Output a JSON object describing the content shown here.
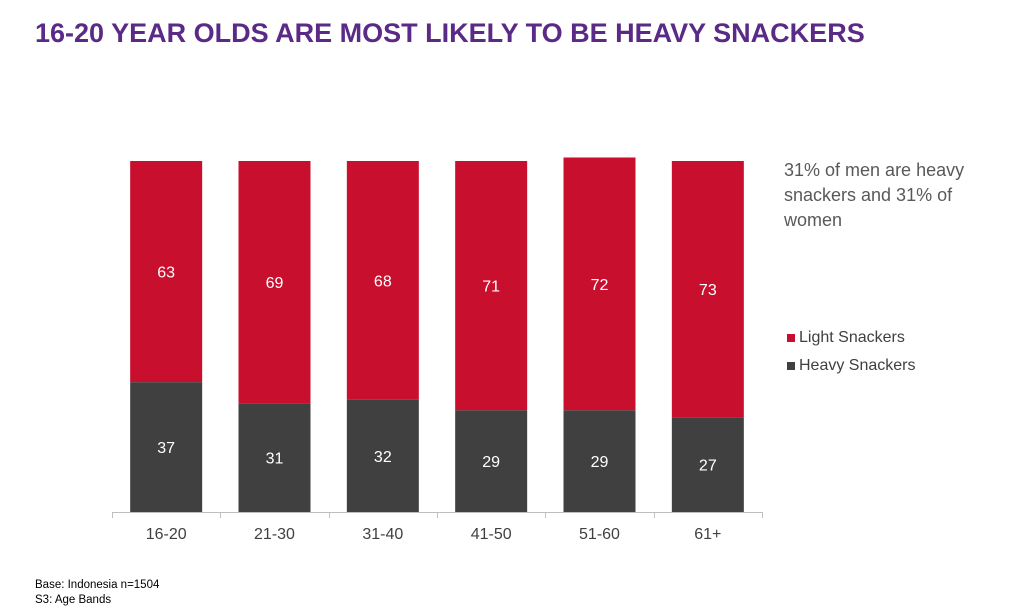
{
  "title": "16-20 YEAR OLDS ARE MOST LIKELY TO BE HEAVY SNACKERS",
  "annotation": "31% of men are heavy snackers and 31% of women",
  "legend": [
    {
      "label": "Light Snackers",
      "color": "#c8102e"
    },
    {
      "label": "Heavy Snackers",
      "color": "#404040"
    }
  ],
  "footnote": {
    "base": "Base: Indonesia n=1504",
    "question": "S3: Age Bands"
  },
  "chart_data": {
    "type": "bar",
    "stacked": true,
    "categories": [
      "16-20",
      "21-30",
      "31-40",
      "41-50",
      "51-60",
      "61+"
    ],
    "series": [
      {
        "name": "Heavy Snackers",
        "color": "#404040",
        "values": [
          37,
          31,
          32,
          29,
          29,
          27
        ]
      },
      {
        "name": "Light Snackers",
        "color": "#c8102e",
        "values": [
          63,
          69,
          68,
          71,
          72,
          73
        ]
      }
    ],
    "ylim": [
      0,
      100
    ],
    "grid": false,
    "legend_position": "right"
  }
}
